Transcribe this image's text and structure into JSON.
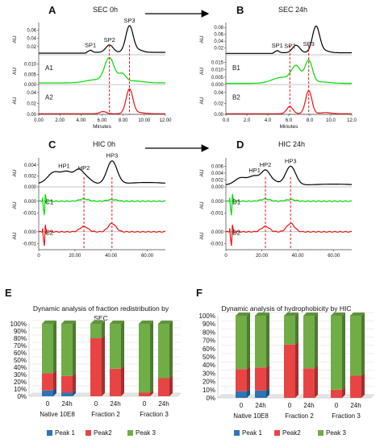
{
  "panels": {
    "A": {
      "letter": "A",
      "title": "SEC 0h"
    },
    "B": {
      "letter": "B",
      "title": "SEC 24h"
    },
    "C": {
      "letter": "C",
      "title": "HIC 0h"
    },
    "D": {
      "letter": "D",
      "title": "HIC 24h"
    },
    "E": {
      "letter": "E",
      "title_line1": "Dynamic analysis of fraction redistribution by",
      "title_line2": "SEC"
    },
    "F": {
      "letter": "F",
      "title": "Dynamic analysis of hydrophobicity by HIC"
    }
  },
  "colors": {
    "black": "#000000",
    "green": "#00dd00",
    "red": "#ee1111",
    "peak1": "#2e75b6",
    "peak2": "#e84444",
    "peak3": "#70ad47"
  },
  "chart_data": [
    {
      "type": "line",
      "panel": "A",
      "xlabel": "Minutes",
      "xlim": [
        0,
        12
      ],
      "xticks": [
        "0.00",
        "2.00",
        "4.00",
        "6.00",
        "8.00",
        "10.00",
        "12.00"
      ],
      "ylabel": "AU",
      "traces": [
        {
          "yticks": [
            "0.02",
            "0.04",
            "0.06"
          ],
          "ylim": [
            0,
            0.075
          ],
          "peak_labels": [
            "SP1",
            "SP2",
            "SP3"
          ]
        },
        {
          "name": "A1",
          "yticks": [
            "0.000",
            "0.005",
            "0.010"
          ],
          "ylim": [
            0,
            0.013
          ]
        },
        {
          "name": "A2",
          "yticks": [
            "0.00",
            "0.02",
            "0.04"
          ],
          "ylim": [
            0,
            0.05
          ]
        }
      ]
    },
    {
      "type": "line",
      "panel": "B",
      "xlabel": "Minutes",
      "xlim": [
        0,
        12
      ],
      "xticks": [
        "0.0",
        "2.0",
        "4.0",
        "6.0",
        "8.0",
        "10.0",
        "12.0"
      ],
      "ylabel": "AU",
      "traces": [
        {
          "yticks": [
            "0.02",
            "0.04",
            "0.06",
            "0.08"
          ],
          "ylim": [
            0,
            0.09
          ],
          "peak_labels": [
            "SP1",
            "SP2",
            "SP3"
          ]
        },
        {
          "name": "B1",
          "yticks": [
            "0.000",
            "0.005",
            "0.010",
            "0.015"
          ],
          "ylim": [
            0,
            0.018
          ]
        },
        {
          "name": "B2",
          "yticks": [
            "0.00",
            "0.02",
            "0.04"
          ],
          "ylim": [
            0,
            0.05
          ]
        }
      ]
    },
    {
      "type": "line",
      "panel": "C",
      "xlim": [
        0,
        70
      ],
      "xticks": [
        "0",
        "20.00",
        "40.00",
        "60.00"
      ],
      "ylabel": "AU",
      "traces": [
        {
          "yticks": [
            "0.000",
            "0.002",
            "0.004"
          ],
          "ylim": [
            0,
            0.005
          ],
          "peak_labels": [
            "HP1",
            "HP2",
            "HP3"
          ]
        },
        {
          "name": "C1",
          "yticks": [
            "0.000",
            "-0.001"
          ],
          "ylim": [
            -0.0015,
            0.0008
          ]
        },
        {
          "name": "C2",
          "yticks": [
            "0.000",
            "-0.001"
          ],
          "ylim": [
            -0.0015,
            0.0008
          ]
        }
      ]
    },
    {
      "type": "line",
      "panel": "D",
      "xlim": [
        0,
        70
      ],
      "xticks": [
        "0",
        "20.00",
        "40.00",
        "60.00"
      ],
      "ylabel": "AU",
      "traces": [
        {
          "yticks": [
            "0.000",
            "0.002",
            "0.004",
            "0.006"
          ],
          "ylim": [
            0,
            0.008
          ],
          "peak_labels": [
            "HP1",
            "HP2",
            "HP3"
          ]
        },
        {
          "name": "D1",
          "yticks": [
            "0.000",
            "-0.001"
          ],
          "ylim": [
            -0.0015,
            0.0008
          ]
        },
        {
          "name": "D2",
          "yticks": [
            "0.000",
            "-0.001"
          ],
          "ylim": [
            -0.0015,
            0.0008
          ]
        }
      ]
    },
    {
      "type": "bar",
      "stacked": true,
      "panel": "E",
      "categories": [
        "0",
        "24h",
        "0",
        "24h",
        "0",
        "24h"
      ],
      "groups": [
        "Native 10E8",
        "Fraction 2",
        "Fraction 3"
      ],
      "ylim": [
        0,
        100
      ],
      "yticks": [
        "0%",
        "10%",
        "20%",
        "30%",
        "40%",
        "50%",
        "60%",
        "70%",
        "80%",
        "90%",
        "100%"
      ],
      "series": [
        {
          "name": "Peak 1",
          "values": [
            8,
            5,
            0,
            0,
            0,
            0
          ]
        },
        {
          "name": "Peak2",
          "values": [
            24,
            23,
            80,
            38,
            5,
            25
          ]
        },
        {
          "name": "Peak 3",
          "values": [
            68,
            72,
            20,
            62,
            95,
            75
          ]
        }
      ],
      "legend": "bottom"
    },
    {
      "type": "bar",
      "stacked": true,
      "panel": "F",
      "categories": [
        "0",
        "24h",
        "0",
        "24h",
        "0",
        "24h"
      ],
      "groups": [
        "Native 10E8",
        "Fraction 2",
        "Fraction 3"
      ],
      "ylim": [
        0,
        100
      ],
      "yticks": [
        "0%",
        "10%",
        "20%",
        "30%",
        "40%",
        "50%",
        "60%",
        "70%",
        "80%",
        "90%",
        "100%"
      ],
      "series": [
        {
          "name": "Peak 1",
          "values": [
            8,
            9,
            0,
            0,
            0,
            0
          ]
        },
        {
          "name": "Peak2",
          "values": [
            27,
            28,
            65,
            36,
            10,
            27
          ]
        },
        {
          "name": "Peak 3",
          "values": [
            65,
            63,
            35,
            64,
            90,
            73
          ]
        }
      ],
      "legend": "bottom"
    }
  ]
}
